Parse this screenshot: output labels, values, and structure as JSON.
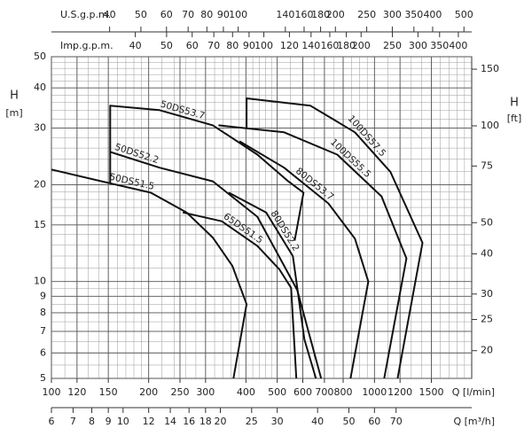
{
  "chart_data": {
    "type": "line",
    "x_label": "Q [l/min]",
    "x2_label": "Q [m³/h]",
    "x3_label": "U.S.g.p.m.",
    "x4_label": "Imp.g.p.m.",
    "y_label": "H",
    "y_unit": "[m]",
    "y2_label": "H",
    "y2_unit": "[ft]",
    "log_x": true,
    "log_y": true,
    "grid": true,
    "xlim": [
      100,
      2000
    ],
    "xticks": [
      100,
      120,
      150,
      200,
      250,
      300,
      400,
      500,
      600,
      700,
      800,
      1000,
      1200,
      1500
    ],
    "x2lim": [
      6,
      120
    ],
    "x2ticks": [
      6,
      7,
      8,
      9,
      10,
      12,
      14,
      16,
      18,
      20,
      25,
      30,
      40,
      50,
      60,
      70
    ],
    "x3lim": [
      26.42,
      528.4
    ],
    "x3ticks": [
      40,
      50,
      60,
      70,
      80,
      90,
      100,
      140,
      160,
      180,
      200,
      250,
      300,
      350,
      400,
      500
    ],
    "x4lim": [
      22.0,
      440
    ],
    "x4ticks": [
      40,
      50,
      60,
      70,
      80,
      90,
      100,
      120,
      140,
      160,
      180,
      200,
      250,
      300,
      350,
      400
    ],
    "ylim": [
      5,
      50
    ],
    "yticks": [
      5,
      6,
      7,
      8,
      9,
      10,
      15,
      20,
      30,
      40,
      50
    ],
    "y2lim": [
      16.4,
      164
    ],
    "y2ticks": [
      20,
      25,
      30,
      40,
      50,
      75,
      100,
      150
    ],
    "series": [
      {
        "name": "50DS51.5",
        "color": "#111",
        "x": [
          100,
          152,
          203,
          262,
          316,
          363,
          402,
          366
        ],
        "values": [
          22.3,
          20.2,
          18.9,
          16.4,
          13.7,
          11.2,
          8.5,
          5
        ]
      },
      {
        "name": "50DS52.2",
        "color": "#111",
        "x": [
          152,
          152,
          216,
          316,
          434,
          525,
          577,
          684
        ],
        "values": [
          20.2,
          25.3,
          22.6,
          20.5,
          15.9,
          11.2,
          9.4,
          5
        ]
      },
      {
        "name": "50DS53.7",
        "color": "#111",
        "x": [
          152,
          152,
          216,
          316,
          434,
          541,
          603,
          566
        ],
        "values": [
          25.3,
          35.2,
          34.1,
          30.6,
          24.8,
          20.5,
          18.9,
          13.4
        ]
      },
      {
        "name": "65DS51.5",
        "color": "#111",
        "x": [
          255,
          337,
          434,
          508,
          552,
          573
        ],
        "values": [
          16.4,
          15.4,
          12.9,
          10.9,
          9.56,
          5
        ]
      },
      {
        "name": "80DS52.2",
        "color": "#111",
        "x": [
          354,
          462,
          559,
          607,
          659
        ],
        "values": [
          18.9,
          16.4,
          12.0,
          6.61,
          5
        ]
      },
      {
        "name": "80DS53.7",
        "color": "#111",
        "x": [
          382,
          525,
          720,
          870,
          957,
          843
        ],
        "values": [
          27.3,
          22.6,
          17.5,
          13.6,
          10.0,
          5
        ]
      },
      {
        "name": "100DS55.5",
        "color": "#111",
        "x": [
          329,
          525,
          767,
          1052,
          1256,
          1072
        ],
        "values": [
          30.6,
          29.1,
          24.8,
          18.4,
          11.8,
          5
        ]
      },
      {
        "name": "100DS57.5",
        "color": "#111",
        "x": [
          402,
          402,
          634,
          870,
          1121,
          1408,
          1179
        ],
        "values": [
          30.1,
          37.1,
          35.2,
          29.1,
          21.9,
          13.2,
          5
        ]
      }
    ]
  }
}
